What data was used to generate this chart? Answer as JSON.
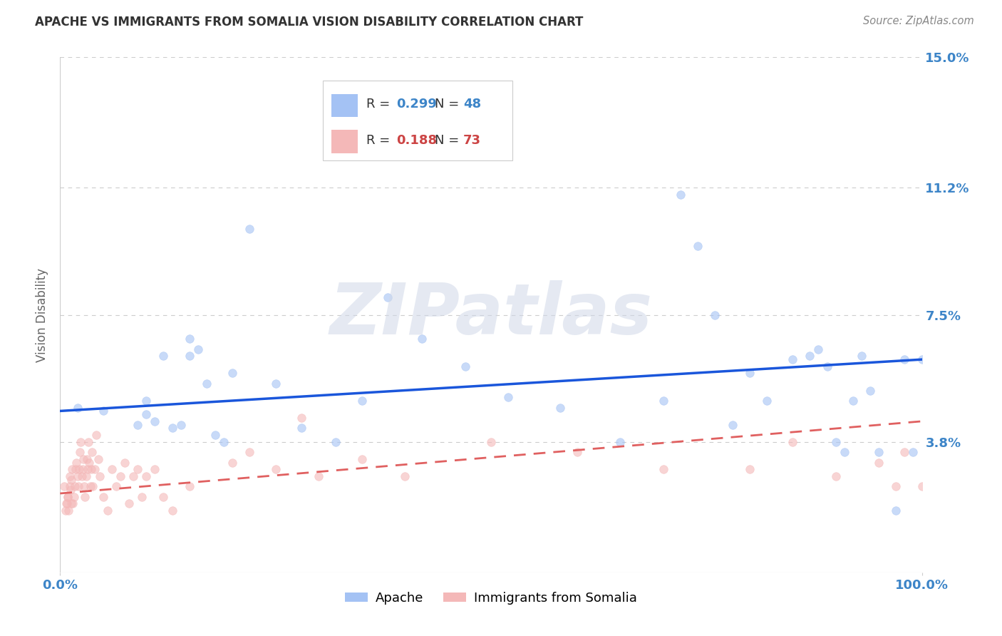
{
  "title": "APACHE VS IMMIGRANTS FROM SOMALIA VISION DISABILITY CORRELATION CHART",
  "source": "Source: ZipAtlas.com",
  "ylabel": "Vision Disability",
  "xlim": [
    0,
    1.0
  ],
  "ylim": [
    0,
    0.15
  ],
  "xticklabels": [
    "0.0%",
    "100.0%"
  ],
  "yticks": [
    0.038,
    0.075,
    0.112,
    0.15
  ],
  "yticklabels": [
    "3.8%",
    "7.5%",
    "11.2%",
    "15.0%"
  ],
  "grid_color": "#cccccc",
  "background_color": "#ffffff",
  "apache_color": "#a4c2f4",
  "somalia_color": "#f4b8b8",
  "apache_line_color": "#1a56db",
  "somalia_line_color": "#e06060",
  "legend_R_apache": "R = 0.299",
  "legend_N_apache": "N = 48",
  "legend_R_somalia": "R = 0.188",
  "legend_N_somalia": "N = 73",
  "apache_scatter_x": [
    0.02,
    0.05,
    0.09,
    0.1,
    0.11,
    0.13,
    0.14,
    0.15,
    0.16,
    0.18,
    0.19,
    0.2,
    0.22,
    0.25,
    0.28,
    0.32,
    0.35,
    0.38,
    0.42,
    0.47,
    0.52,
    0.58,
    0.65,
    0.7,
    0.72,
    0.74,
    0.76,
    0.78,
    0.8,
    0.82,
    0.85,
    0.87,
    0.88,
    0.89,
    0.9,
    0.91,
    0.92,
    0.93,
    0.94,
    0.95,
    0.97,
    0.98,
    0.99,
    1.0,
    0.1,
    0.12,
    0.15,
    0.17
  ],
  "apache_scatter_y": [
    0.048,
    0.047,
    0.043,
    0.05,
    0.044,
    0.042,
    0.043,
    0.068,
    0.065,
    0.04,
    0.038,
    0.058,
    0.1,
    0.055,
    0.042,
    0.038,
    0.05,
    0.08,
    0.068,
    0.06,
    0.051,
    0.048,
    0.038,
    0.05,
    0.11,
    0.095,
    0.075,
    0.043,
    0.058,
    0.05,
    0.062,
    0.063,
    0.065,
    0.06,
    0.038,
    0.035,
    0.05,
    0.063,
    0.053,
    0.035,
    0.018,
    0.062,
    0.035,
    0.062,
    0.046,
    0.063,
    0.063,
    0.055
  ],
  "somalia_scatter_x": [
    0.005,
    0.007,
    0.009,
    0.01,
    0.011,
    0.012,
    0.013,
    0.014,
    0.015,
    0.016,
    0.017,
    0.018,
    0.019,
    0.02,
    0.021,
    0.022,
    0.023,
    0.024,
    0.025,
    0.026,
    0.027,
    0.028,
    0.029,
    0.03,
    0.031,
    0.032,
    0.033,
    0.034,
    0.035,
    0.036,
    0.037,
    0.038,
    0.04,
    0.042,
    0.044,
    0.046,
    0.05,
    0.055,
    0.06,
    0.065,
    0.07,
    0.075,
    0.08,
    0.085,
    0.09,
    0.095,
    0.1,
    0.11,
    0.12,
    0.13,
    0.15,
    0.2,
    0.22,
    0.25,
    0.28,
    0.3,
    0.35,
    0.4,
    0.5,
    0.6,
    0.7,
    0.8,
    0.85,
    0.9,
    0.95,
    0.97,
    0.98,
    1.0,
    0.006,
    0.008,
    0.009,
    0.011,
    0.013
  ],
  "somalia_scatter_y": [
    0.025,
    0.02,
    0.022,
    0.018,
    0.028,
    0.024,
    0.027,
    0.03,
    0.02,
    0.022,
    0.025,
    0.03,
    0.032,
    0.028,
    0.025,
    0.03,
    0.035,
    0.038,
    0.028,
    0.03,
    0.033,
    0.025,
    0.022,
    0.028,
    0.033,
    0.03,
    0.038,
    0.032,
    0.025,
    0.03,
    0.035,
    0.025,
    0.03,
    0.04,
    0.033,
    0.028,
    0.022,
    0.018,
    0.03,
    0.025,
    0.028,
    0.032,
    0.02,
    0.028,
    0.03,
    0.022,
    0.028,
    0.03,
    0.022,
    0.018,
    0.025,
    0.032,
    0.035,
    0.03,
    0.045,
    0.028,
    0.033,
    0.028,
    0.038,
    0.035,
    0.03,
    0.03,
    0.038,
    0.028,
    0.032,
    0.025,
    0.035,
    0.025,
    0.018,
    0.02,
    0.022,
    0.025,
    0.02
  ],
  "apache_line_y_start": 0.047,
  "apache_line_y_end": 0.062,
  "somalia_line_y_start": 0.023,
  "somalia_line_y_end": 0.044,
  "watermark_text": "ZIPatlas",
  "marker_size": 70,
  "alpha_scatter": 0.6,
  "tick_color": "#3d85c8",
  "ylabel_color": "#666666",
  "title_color": "#333333",
  "source_color": "#888888"
}
